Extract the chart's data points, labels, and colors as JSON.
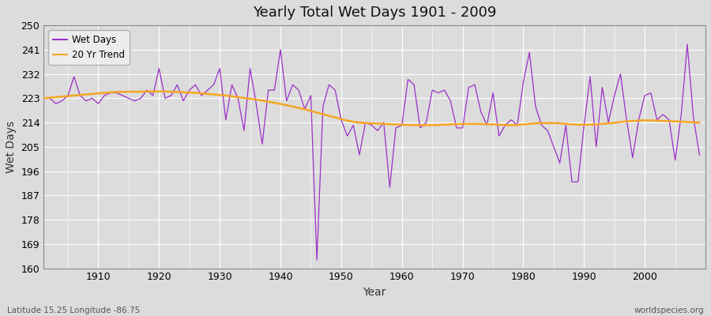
{
  "title": "Yearly Total Wet Days 1901 - 2009",
  "xlabel": "Year",
  "ylabel": "Wet Days",
  "subtitle_left": "Latitude 15.25 Longitude -86.75",
  "subtitle_right": "worldspecies.org",
  "ylim": [
    160,
    250
  ],
  "yticks": [
    160,
    169,
    178,
    187,
    196,
    205,
    214,
    223,
    232,
    241,
    250
  ],
  "xticks": [
    1910,
    1920,
    1930,
    1940,
    1950,
    1960,
    1970,
    1980,
    1990,
    2000
  ],
  "xlim": [
    1901,
    2010
  ],
  "bg_color": "#dcdcdc",
  "plot_bg_color": "#dcdcdc",
  "grid_color": "#ffffff",
  "wet_days_color": "#9b30c8",
  "trend_color": "#f5a623",
  "legend_bg": "#f0f0f0",
  "years": [
    1901,
    1902,
    1903,
    1904,
    1905,
    1906,
    1907,
    1908,
    1909,
    1910,
    1911,
    1912,
    1913,
    1914,
    1915,
    1916,
    1917,
    1918,
    1919,
    1920,
    1921,
    1922,
    1923,
    1924,
    1925,
    1926,
    1927,
    1928,
    1929,
    1930,
    1931,
    1932,
    1933,
    1934,
    1935,
    1936,
    1937,
    1938,
    1939,
    1940,
    1941,
    1942,
    1943,
    1944,
    1945,
    1946,
    1947,
    1948,
    1949,
    1950,
    1951,
    1952,
    1953,
    1954,
    1955,
    1956,
    1957,
    1958,
    1959,
    1960,
    1961,
    1962,
    1963,
    1964,
    1965,
    1966,
    1967,
    1968,
    1969,
    1970,
    1971,
    1972,
    1973,
    1974,
    1975,
    1976,
    1977,
    1978,
    1979,
    1980,
    1981,
    1982,
    1983,
    1984,
    1985,
    1986,
    1987,
    1988,
    1989,
    1990,
    1991,
    1992,
    1993,
    1994,
    1995,
    1996,
    1997,
    1998,
    1999,
    2000,
    2001,
    2002,
    2003,
    2004,
    2005,
    2006,
    2007,
    2008,
    2009
  ],
  "wet_days": [
    223,
    223,
    221,
    222,
    224,
    231,
    224,
    222,
    223,
    221,
    224,
    225,
    225,
    224,
    223,
    222,
    223,
    226,
    224,
    234,
    223,
    224,
    228,
    222,
    226,
    228,
    224,
    226,
    228,
    234,
    215,
    228,
    223,
    211,
    234,
    221,
    206,
    226,
    226,
    241,
    222,
    228,
    226,
    219,
    224,
    163,
    220,
    228,
    226,
    215,
    209,
    213,
    202,
    214,
    213,
    211,
    214,
    190,
    212,
    213,
    230,
    228,
    212,
    214,
    226,
    225,
    226,
    222,
    212,
    212,
    227,
    228,
    218,
    213,
    225,
    209,
    213,
    215,
    213,
    229,
    240,
    220,
    213,
    211,
    205,
    199,
    213,
    192,
    192,
    213,
    231,
    205,
    227,
    214,
    224,
    232,
    215,
    201,
    215,
    224,
    225,
    215,
    217,
    215,
    200,
    217,
    243,
    216,
    202
  ],
  "trend": [
    223.0,
    223.2,
    223.4,
    223.6,
    223.8,
    224.0,
    224.2,
    224.4,
    224.6,
    224.8,
    225.0,
    225.2,
    225.3,
    225.4,
    225.4,
    225.4,
    225.4,
    225.5,
    225.5,
    225.5,
    225.5,
    225.4,
    225.3,
    225.2,
    225.1,
    225.0,
    224.8,
    224.6,
    224.4,
    224.2,
    224.0,
    223.7,
    223.4,
    223.1,
    222.8,
    222.5,
    222.1,
    221.7,
    221.3,
    220.9,
    220.4,
    219.9,
    219.4,
    218.9,
    218.3,
    217.7,
    217.1,
    216.5,
    215.9,
    215.3,
    214.7,
    214.3,
    214.0,
    213.8,
    213.7,
    213.6,
    213.5,
    213.4,
    213.3,
    213.2,
    213.1,
    213.0,
    213.0,
    213.0,
    213.0,
    213.1,
    213.2,
    213.3,
    213.4,
    213.5,
    213.5,
    213.5,
    213.5,
    213.4,
    213.3,
    213.2,
    213.1,
    213.0,
    213.1,
    213.3,
    213.5,
    213.7,
    213.8,
    213.8,
    213.8,
    213.7,
    213.5,
    213.3,
    213.2,
    213.2,
    213.2,
    213.3,
    213.5,
    213.7,
    213.9,
    214.2,
    214.4,
    214.6,
    214.7,
    214.8,
    214.8,
    214.7,
    214.6,
    214.5,
    214.4,
    214.3,
    214.2,
    214.1,
    214.0
  ]
}
